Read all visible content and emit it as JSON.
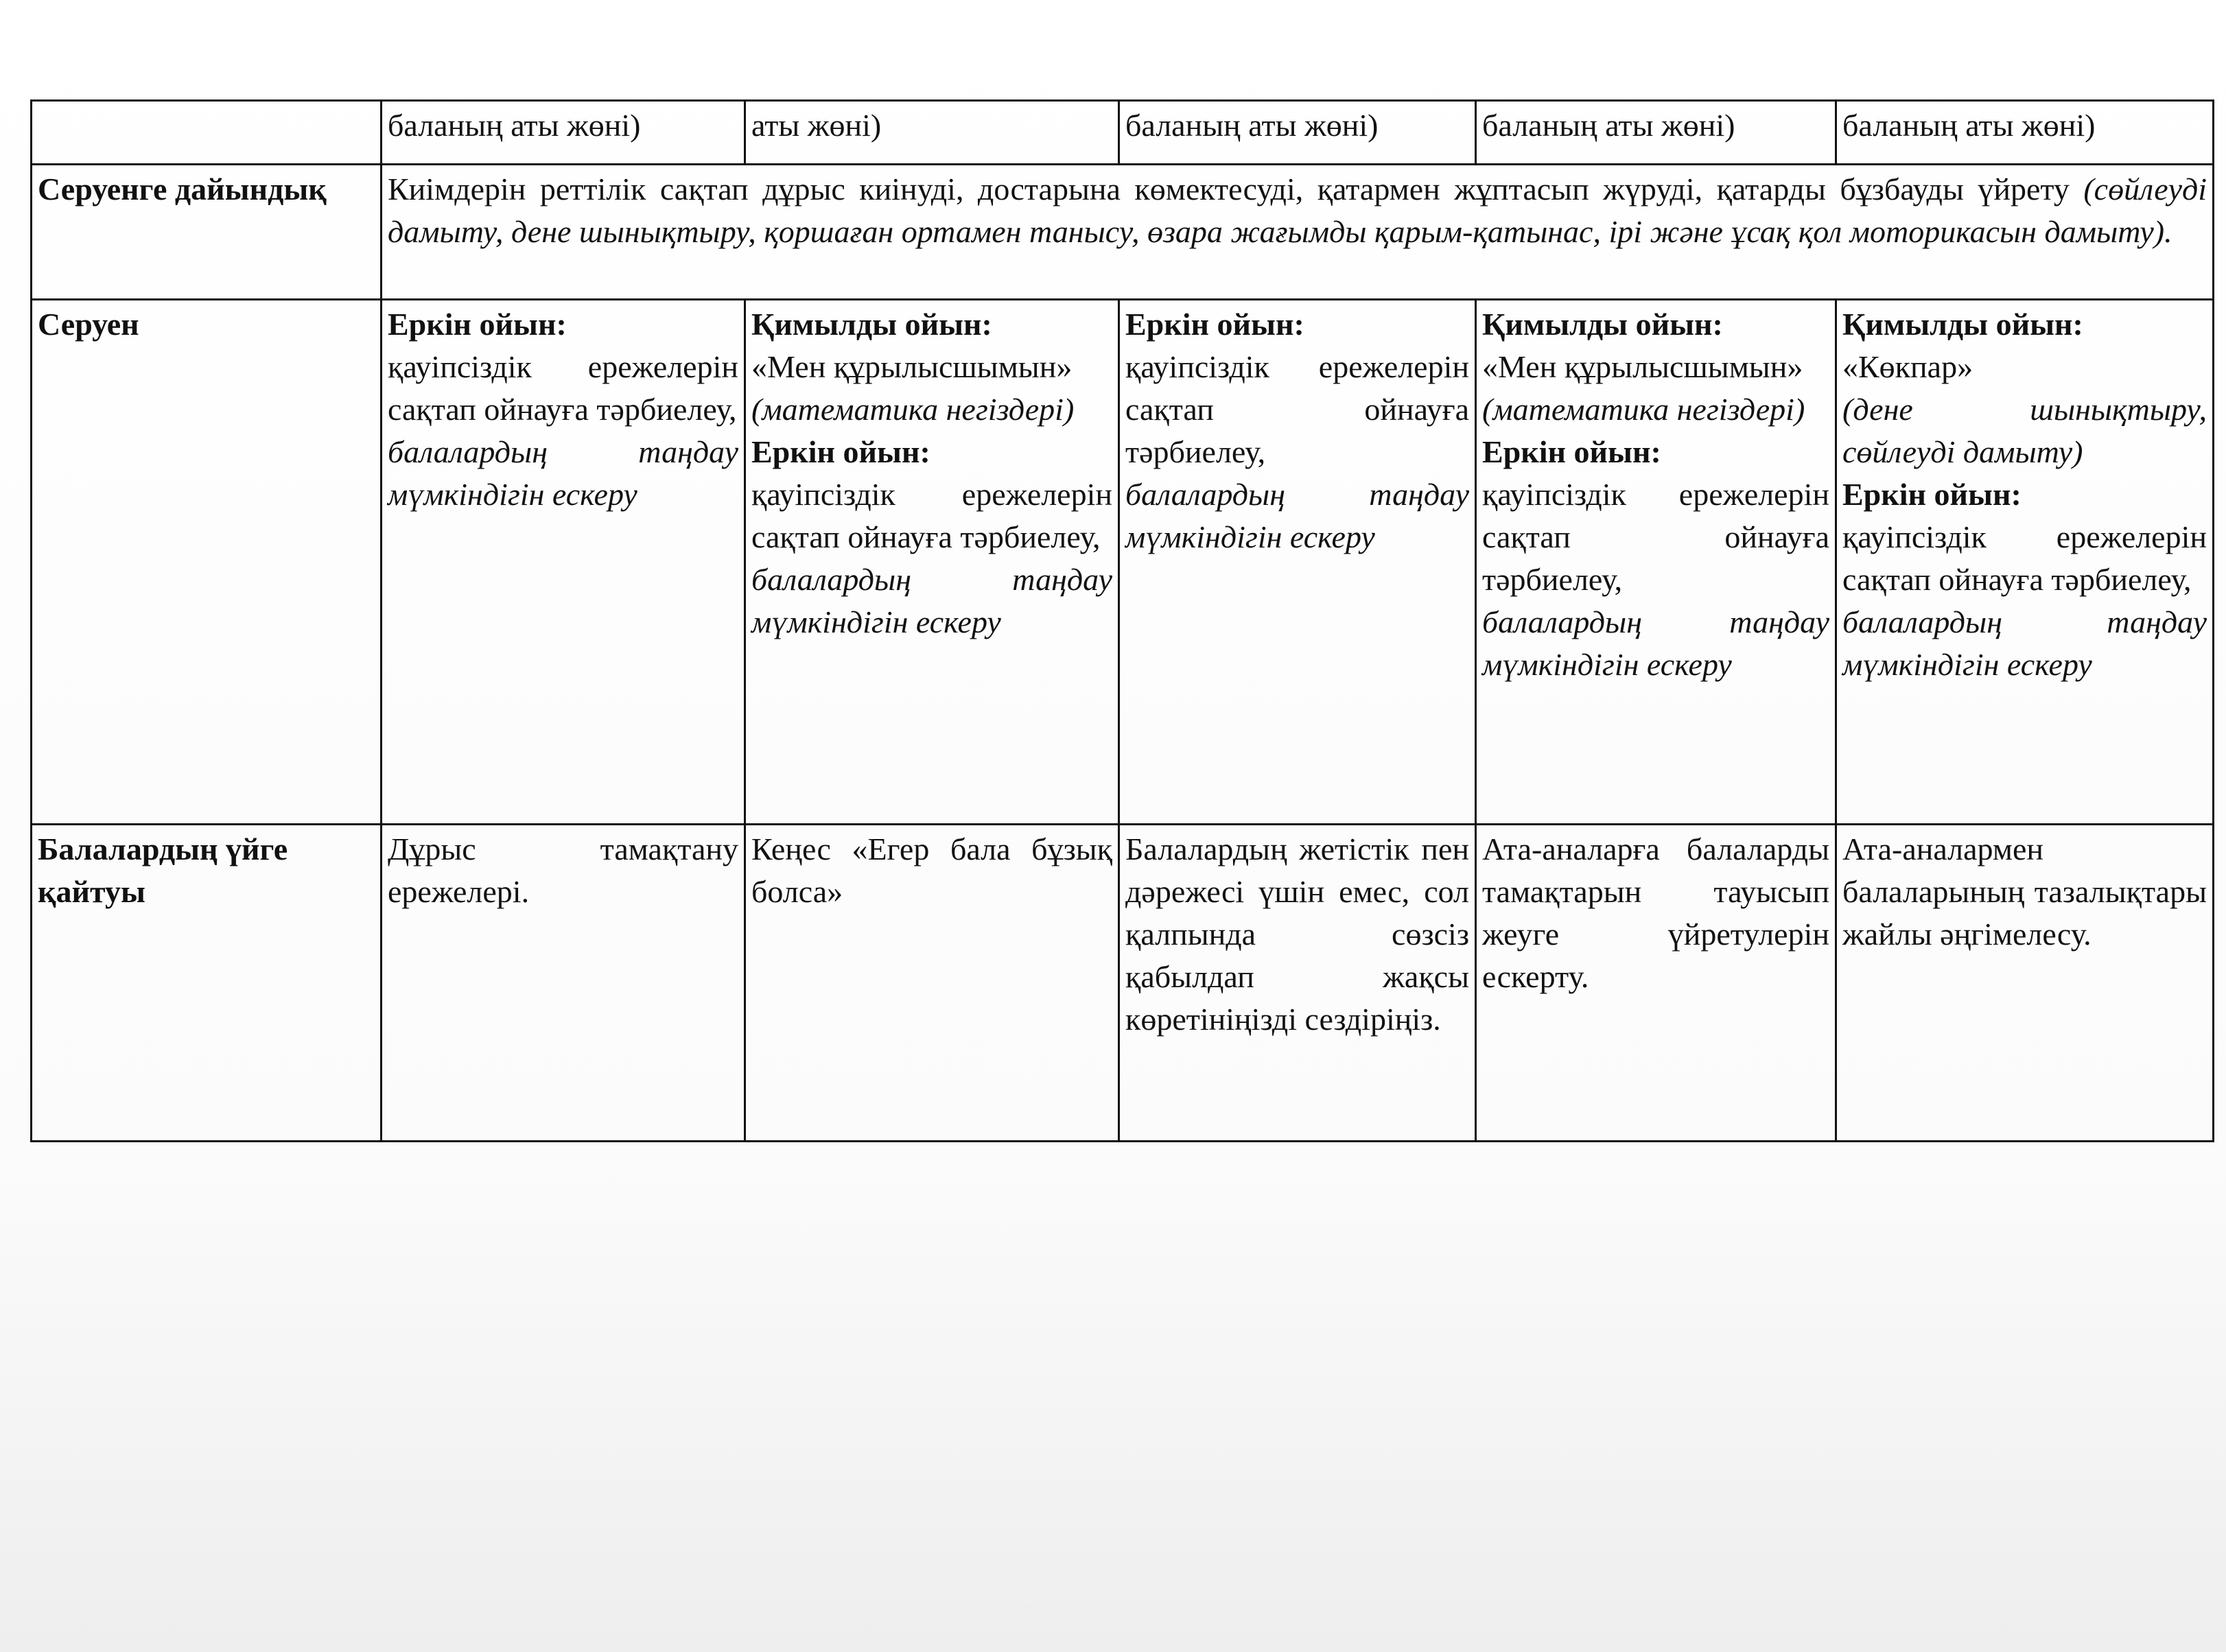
{
  "table": {
    "rows": [
      {
        "cells": [
          "баланың аты жөні)",
          "аты жөні)",
          "баланың аты жөні)",
          "баланың аты жөні)",
          "баланың аты жөні)"
        ]
      },
      {
        "label": "Серуенге дайындық",
        "merged": [
          {
            "t": "Киімдерін реттілік сақтап дұрыс киінуді, достарына көмектесуді, қатармен жұптасып жүруді, қатарды бұзбауды үйрету"
          },
          {
            "i": "(сөйлеуді дамыту, дене шынықтыру, қоршаған ортамен танысу, өзара жағымды қарым-қатынас, ірі және ұсақ қол моторикасын дамыту)."
          }
        ]
      },
      {
        "label": "Серуен",
        "cells": [
          [
            {
              "b": "Еркін ойын:"
            },
            {
              "t": "қауіпсіздік ережелерін сақтап ойнауға тәрбиелеу,"
            },
            {
              "i": "балалардың таңдау мүмкіндігін ескеру"
            }
          ],
          [
            {
              "b": "Қимылды ойын:"
            },
            {
              "t": "«Мен құрылысшымын»"
            },
            {
              "i": "(математика негіздері)"
            },
            {
              "b": "Еркін ойын:"
            },
            {
              "t": "қауіпсіздік ережелерін сақтап ойнауға тәрбиелеу,"
            },
            {
              "i": "балалардың таңдау мүмкіндігін ескеру"
            }
          ],
          [
            {
              "b": "Еркін ойын:"
            },
            {
              "t": "қауіпсіздік ережелерін сақтап ойнауға тәрбиелеу,"
            },
            {
              "i": "балалардың таңдау мүмкіндігін ескеру"
            }
          ],
          [
            {
              "b": "Қимылды ойын:"
            },
            {
              "t": "«Мен құрылысшымын»"
            },
            {
              "i": "(математика негіздері)"
            },
            {
              "b": "Еркін ойын:"
            },
            {
              "t": "қауіпсіздік ережелерін сақтап ойнауға тәрбиелеу,"
            },
            {
              "i": "балалардың таңдау мүмкіндігін ескеру"
            }
          ],
          [
            {
              "b": "Қимылды ойын:"
            },
            {
              "t": "«Көкпар»"
            },
            {
              "i": "(дене шынықтыру, сөйлеуді дамыту)"
            },
            {
              "b": "Еркін ойын:"
            },
            {
              "t": "қауіпсіздік ережелерін сақтап ойнауға тәрбиелеу,"
            },
            {
              "i": "балалардың таңдау мүмкіндігін ескеру"
            }
          ]
        ]
      },
      {
        "label": "Балалардың үйге қайтуы",
        "cells": [
          [
            {
              "t": "Дұрыс тамақтану ережелері."
            }
          ],
          [
            {
              "t": "Кеңес «Егер бала бұзық болса»"
            }
          ],
          [
            {
              "t": "Балалардың жетістік пен дәрежесі үшін емес, сол қалпында сөзсіз қабылдап жақсы көретініңізді сездіріңіз."
            }
          ],
          [
            {
              "t": "Ата-аналарға балаларды тамақтарын тауысып жеуге үйретулерін ескерту."
            }
          ],
          [
            {
              "t": "Ата-аналармен балаларының тазалықтары жайлы әңгімелесу."
            }
          ]
        ]
      }
    ]
  }
}
